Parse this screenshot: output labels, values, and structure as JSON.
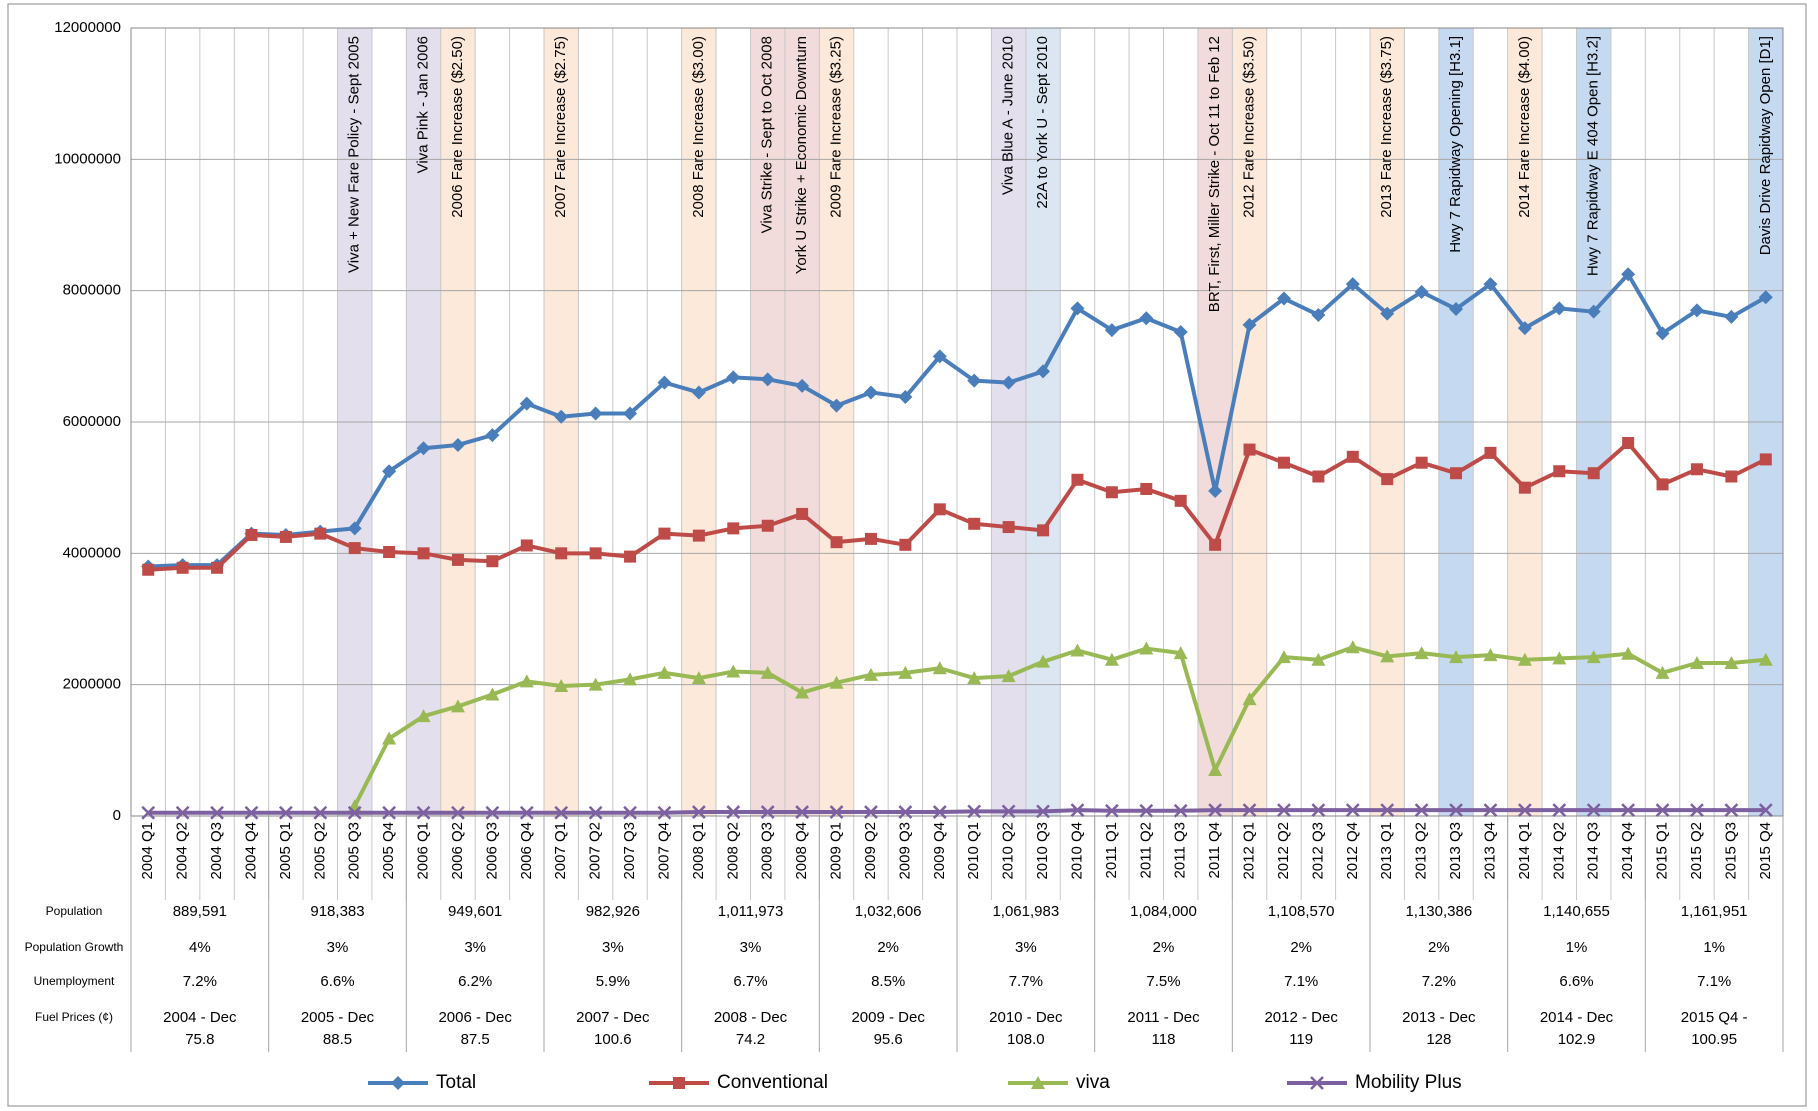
{
  "chart_data": {
    "type": "line",
    "categories": [
      "2004 Q1",
      "2004 Q2",
      "2004 Q3",
      "2004 Q4",
      "2005 Q1",
      "2005 Q2",
      "2005 Q3",
      "2005 Q4",
      "2006 Q1",
      "2006 Q2",
      "2006 Q3",
      "2006 Q4",
      "2007 Q1",
      "2007 Q2",
      "2007 Q3",
      "2007 Q4",
      "2008 Q1",
      "2008 Q2",
      "2008 Q3",
      "2008 Q4",
      "2009 Q1",
      "2009 Q2",
      "2009 Q3",
      "2009 Q4",
      "2010 Q1",
      "2010 Q2",
      "2010 Q3",
      "2010 Q4",
      "2011 Q1",
      "2011 Q2",
      "2011 Q3",
      "2011 Q4",
      "2012 Q1",
      "2012 Q2",
      "2012 Q3",
      "2012 Q4",
      "2013 Q1",
      "2013 Q2",
      "2013 Q3",
      "2013 Q4",
      "2014 Q1",
      "2014 Q2",
      "2014 Q3",
      "2014 Q4",
      "2015 Q1",
      "2015 Q2",
      "2015 Q3",
      "2015 Q4"
    ],
    "ylim": [
      0,
      12000000
    ],
    "yticks": [
      0,
      2000000,
      4000000,
      6000000,
      8000000,
      10000000,
      12000000
    ],
    "grid": true,
    "legend": "bottom",
    "series": [
      {
        "name": "Total",
        "color": "#4a7ebb",
        "marker": "diamond",
        "values": [
          3800000,
          3820000,
          3820000,
          4300000,
          4280000,
          4330000,
          4380000,
          5250000,
          5600000,
          5650000,
          5800000,
          6280000,
          6080000,
          6130000,
          6130000,
          6600000,
          6450000,
          6680000,
          6650000,
          6550000,
          6250000,
          6450000,
          6380000,
          7000000,
          6630000,
          6600000,
          6770000,
          7730000,
          7400000,
          7580000,
          7370000,
          4950000,
          7480000,
          7880000,
          7630000,
          8100000,
          7650000,
          7980000,
          7720000,
          8100000,
          7430000,
          7730000,
          7680000,
          8250000,
          7350000,
          7700000,
          7600000,
          7900000
        ]
      },
      {
        "name": "Conventional",
        "color": "#be4b48",
        "marker": "square",
        "values": [
          3750000,
          3780000,
          3780000,
          4280000,
          4250000,
          4300000,
          4080000,
          4020000,
          4000000,
          3900000,
          3880000,
          4120000,
          4000000,
          4000000,
          3950000,
          4300000,
          4270000,
          4380000,
          4420000,
          4600000,
          4170000,
          4220000,
          4130000,
          4670000,
          4450000,
          4400000,
          4350000,
          5120000,
          4930000,
          4980000,
          4800000,
          4130000,
          5580000,
          5380000,
          5170000,
          5470000,
          5130000,
          5380000,
          5220000,
          5530000,
          5000000,
          5250000,
          5220000,
          5680000,
          5050000,
          5280000,
          5170000,
          5430000
        ]
      },
      {
        "name": "viva",
        "color": "#98b954",
        "marker": "triangle",
        "values": [
          null,
          null,
          null,
          null,
          null,
          null,
          150000,
          1180000,
          1520000,
          1670000,
          1850000,
          2050000,
          1980000,
          2000000,
          2080000,
          2180000,
          2100000,
          2200000,
          2180000,
          1880000,
          2030000,
          2150000,
          2180000,
          2250000,
          2100000,
          2130000,
          2350000,
          2520000,
          2380000,
          2550000,
          2480000,
          700000,
          1780000,
          2420000,
          2380000,
          2570000,
          2430000,
          2480000,
          2420000,
          2450000,
          2380000,
          2400000,
          2420000,
          2470000,
          2180000,
          2330000,
          2330000,
          2380000
        ]
      },
      {
        "name": "Mobility Plus",
        "color": "#7d60a0",
        "marker": "x",
        "values": [
          50000,
          50000,
          50000,
          50000,
          50000,
          50000,
          50000,
          50000,
          50000,
          50000,
          50000,
          50000,
          50000,
          50000,
          50000,
          50000,
          60000,
          60000,
          60000,
          60000,
          60000,
          60000,
          60000,
          60000,
          70000,
          70000,
          70000,
          90000,
          80000,
          80000,
          80000,
          90000,
          90000,
          90000,
          90000,
          90000,
          90000,
          90000,
          90000,
          90000,
          90000,
          90000,
          90000,
          90000,
          90000,
          90000,
          90000,
          90000
        ]
      }
    ],
    "annotations": [
      {
        "x": "2005 Q3",
        "color": "#e4dfec",
        "text": "Viva + New Fare Policy - Sept 2005"
      },
      {
        "x": "2006 Q1",
        "color": "#e4dfec",
        "text": "Viva Pink - Jan 2006"
      },
      {
        "x": "2006 Q2",
        "color": "#fde9d9",
        "text": "2006 Fare Increase ($2.50)"
      },
      {
        "x": "2007 Q1",
        "color": "#fde9d9",
        "text": "2007 Fare Increase ($2.75)"
      },
      {
        "x": "2008 Q1",
        "color": "#fde9d9",
        "text": "2008 Fare Increase ($3.00)"
      },
      {
        "x": "2008 Q3",
        "color": "#f2dcdb",
        "text": "Viva Strike - Sept to Oct 2008"
      },
      {
        "x": "2008 Q4",
        "color": "#f2dcdb",
        "text": "York U Strike + Economic Downturn"
      },
      {
        "x": "2009 Q1",
        "color": "#fde9d9",
        "text": "2009 Fare Increase ($3.25)"
      },
      {
        "x": "2010 Q2",
        "color": "#e4dfec",
        "text": "Viva Blue A - June 2010"
      },
      {
        "x": "2010 Q3",
        "color": "#dce6f2",
        "text": "22A to York U - Sept 2010"
      },
      {
        "x": "2011 Q4",
        "color": "#f2dcdb",
        "text": "BRT, First, Miller Strike - Oct 11 to Feb 12"
      },
      {
        "x": "2012 Q1",
        "color": "#fde9d9",
        "text": "2012 Fare Increase ($3.50)"
      },
      {
        "x": "2013 Q1",
        "color": "#fde9d9",
        "text": "2013 Fare Increase ($3.75)"
      },
      {
        "x": "2013 Q3",
        "color": "#c5d9f1",
        "text": "Hwy 7 Rapidway Opening [H3.1]"
      },
      {
        "x": "2014 Q1",
        "color": "#fde9d9",
        "text": "2014 Fare Increase ($4.00)"
      },
      {
        "x": "2014 Q3",
        "color": "#c5d9f1",
        "text": "Hwy 7 Rapidway E 404 Open [H3.2]"
      },
      {
        "x": "2015 Q4",
        "color": "#c5d9f1",
        "text": "Davis Drive Rapidway Open [D1]"
      }
    ]
  },
  "table": {
    "row_labels": [
      "Population",
      "Population Growth",
      "Unemployment",
      "Fuel Prices (¢)"
    ],
    "rows": [
      [
        "889,591",
        "918,383",
        "949,601",
        "982,926",
        "1,011,973",
        "1,032,606",
        "1,061,983",
        "1,084,000",
        "1,108,570",
        "1,130,386",
        "1,140,655",
        "1,161,951"
      ],
      [
        "4%",
        "3%",
        "3%",
        "3%",
        "3%",
        "2%",
        "3%",
        "2%",
        "2%",
        "2%",
        "1%",
        "1%"
      ],
      [
        "7.2%",
        "6.6%",
        "6.2%",
        "5.9%",
        "6.7%",
        "8.5%",
        "7.7%",
        "7.5%",
        "7.1%",
        "7.2%",
        "6.6%",
        "7.1%"
      ],
      [
        [
          "2004 - Dec",
          "75.8"
        ],
        [
          "2005 - Dec",
          "88.5"
        ],
        [
          "2006 - Dec",
          "87.5"
        ],
        [
          "2007 - Dec",
          "100.6"
        ],
        [
          "2008 - Dec",
          "74.2"
        ],
        [
          "2009 - Dec",
          "95.6"
        ],
        [
          "2010 - Dec",
          "108.0"
        ],
        [
          "2011 - Dec",
          "118"
        ],
        [
          "2012 - Dec",
          "119"
        ],
        [
          "2013 - Dec",
          "128"
        ],
        [
          "2014 - Dec",
          "102.9"
        ],
        [
          "2015 Q4 -",
          "100.95"
        ]
      ]
    ]
  }
}
